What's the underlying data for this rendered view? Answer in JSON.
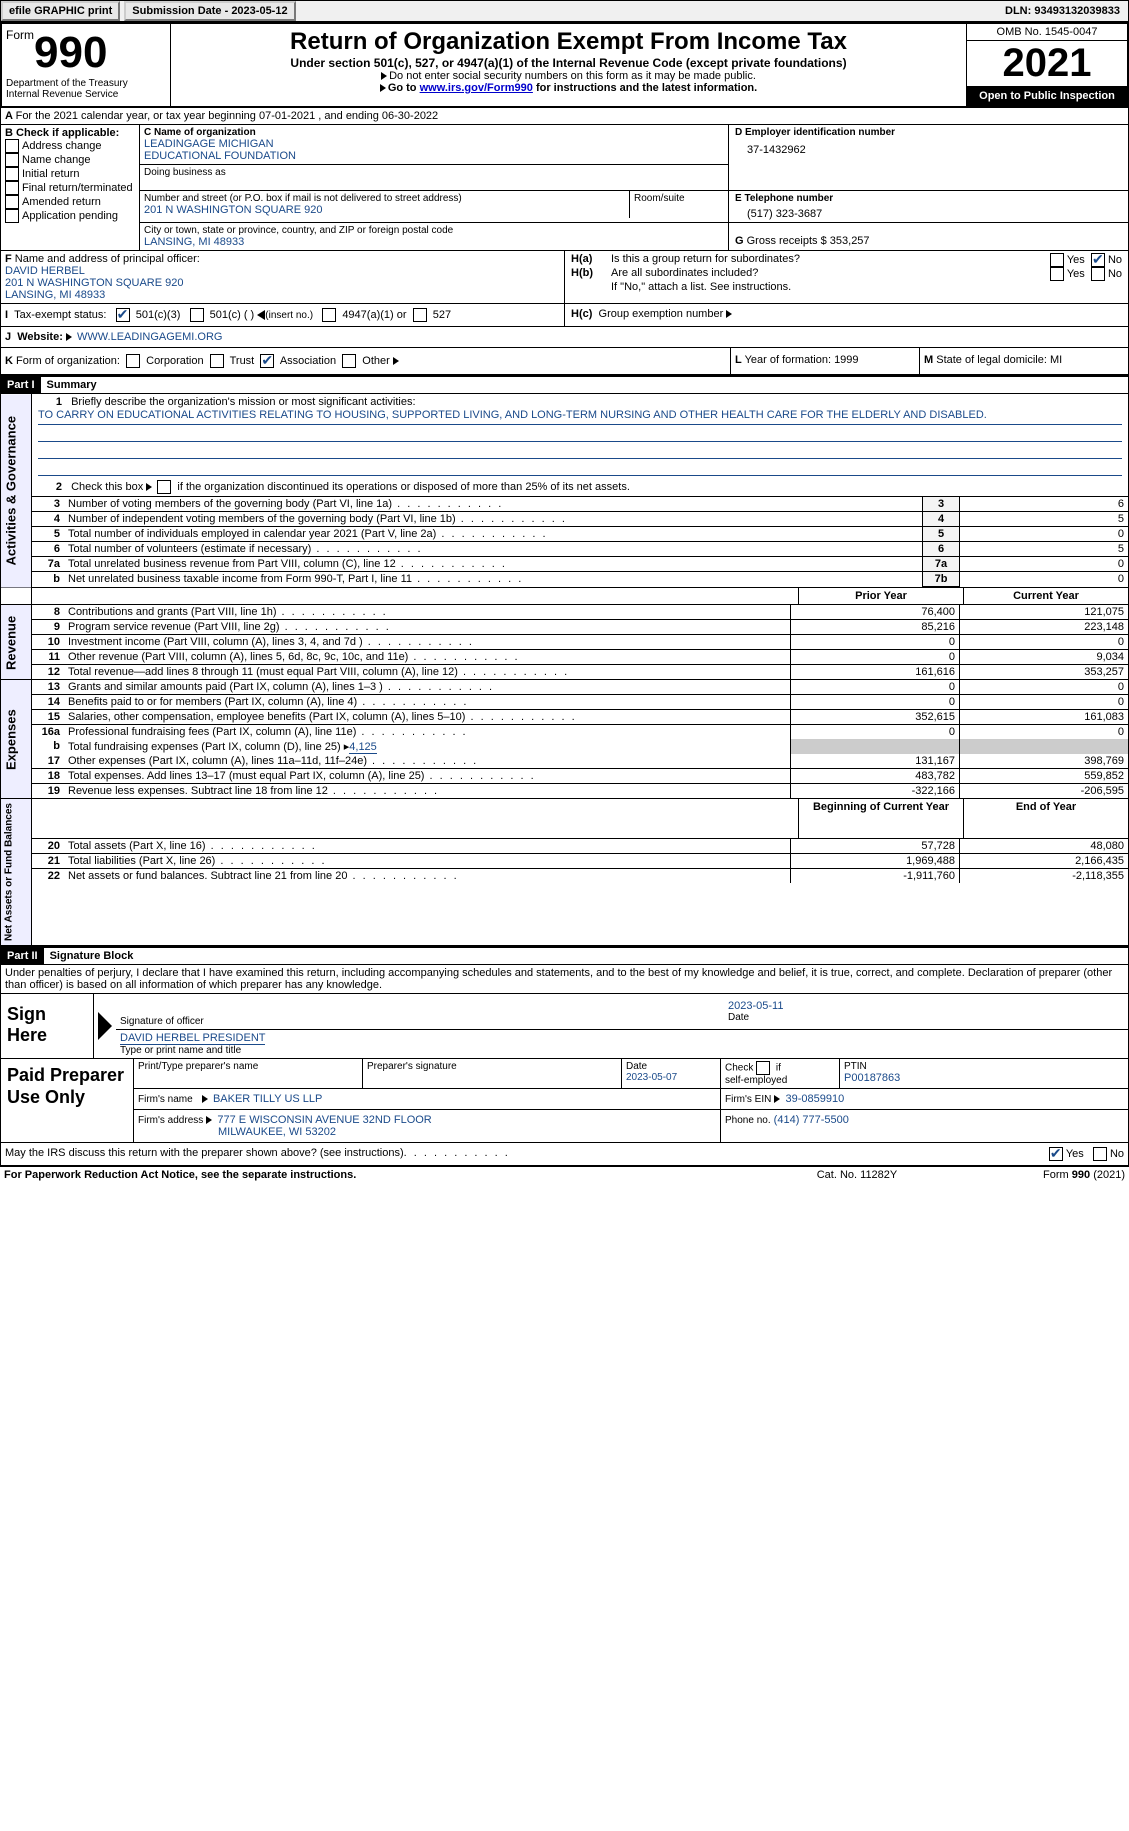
{
  "topbar": {
    "efile": "efile GRAPHIC print",
    "sub_label": "Submission Date - 2023-05-12",
    "dln": "DLN: 93493132039833"
  },
  "header": {
    "form_word": "Form",
    "form_num": "990",
    "dept": "Department of the Treasury",
    "irs": "Internal Revenue Service",
    "title": "Return of Organization Exempt From Income Tax",
    "subtitle": "Under section 501(c), 527, or 4947(a)(1) of the Internal Revenue Code (except private foundations)",
    "instr1": "Do not enter social security numbers on this form as it may be made public.",
    "instr2a": "Go to ",
    "instr2_link": "www.irs.gov/Form990",
    "instr2b": " for instructions and the latest information.",
    "omb": "OMB No. 1545-0047",
    "year": "2021",
    "open": "Open to Public Inspection"
  },
  "A": {
    "line": "For the 2021 calendar year, or tax year beginning 07-01-2021   , and ending 06-30-2022"
  },
  "B": {
    "label": "Check if applicable:",
    "opts": [
      "Address change",
      "Name change",
      "Initial return",
      "Final return/terminated",
      "Amended return",
      "Application pending"
    ]
  },
  "C": {
    "name_label": "Name of organization",
    "name1": "LEADINGAGE MICHIGAN",
    "name2": "EDUCATIONAL FOUNDATION",
    "dba_label": "Doing business as",
    "addr_label": "Number and street (or P.O. box if mail is not delivered to street address)",
    "room_label": "Room/suite",
    "addr": "201 N WASHINGTON SQUARE 920",
    "city_label": "City or town, state or province, country, and ZIP or foreign postal code",
    "city": "LANSING, MI  48933"
  },
  "D": {
    "label": "Employer identification number",
    "val": "37-1432962"
  },
  "E": {
    "label": "Telephone number",
    "val": "(517) 323-3687"
  },
  "G": {
    "label": "Gross receipts $",
    "val": "353,257"
  },
  "F": {
    "label": "Name and address of principal officer:",
    "name": "DAVID HERBEL",
    "addr1": "201 N WASHINGTON SQUARE 920",
    "addr2": "LANSING, MI  48933"
  },
  "H": {
    "a": "Is this a group return for subordinates?",
    "b": "Are all subordinates included?",
    "b_note": "If \"No,\" attach a list. See instructions.",
    "c": "Group exemption number",
    "yes": "Yes",
    "no": "No"
  },
  "I": {
    "label": "Tax-exempt status:",
    "c3": "501(c)(3)",
    "c": "501(c) (   )",
    "insert": "(insert no.)",
    "a1": "4947(a)(1) or",
    "s527": "527"
  },
  "J": {
    "label": "Website:",
    "val": "WWW.LEADINGAGEMI.ORG"
  },
  "K": {
    "label": "Form of organization:",
    "opts": [
      "Corporation",
      "Trust",
      "Association",
      "Other"
    ]
  },
  "L": {
    "label": "Year of formation:",
    "val": "1999"
  },
  "M": {
    "label": "State of legal domicile:",
    "val": "MI"
  },
  "part1": {
    "header": "Part I",
    "title": "Summary",
    "q1_label": "Briefly describe the organization's mission or most significant activities:",
    "q1_text": "TO CARRY ON EDUCATIONAL ACTIVITIES RELATING TO HOUSING, SUPPORTED LIVING, AND LONG-TERM NURSING AND OTHER HEALTH CARE FOR THE ELDERLY AND DISABLED.",
    "q2": "Check this box ▸ if the organization discontinued its operations or disposed of more than 25% of its net assets.",
    "lines_a": [
      {
        "n": "3",
        "d": "Number of voting members of the governing body (Part VI, line 1a)",
        "box": "3",
        "v": "6"
      },
      {
        "n": "4",
        "d": "Number of independent voting members of the governing body (Part VI, line 1b)",
        "box": "4",
        "v": "5"
      },
      {
        "n": "5",
        "d": "Total number of individuals employed in calendar year 2021 (Part V, line 2a)",
        "box": "5",
        "v": "0"
      },
      {
        "n": "6",
        "d": "Total number of volunteers (estimate if necessary)",
        "box": "6",
        "v": "5"
      },
      {
        "n": "7a",
        "d": "Total unrelated business revenue from Part VIII, column (C), line 12",
        "box": "7a",
        "v": "0"
      },
      {
        "n": "b",
        "d": "Net unrelated business taxable income from Form 990-T, Part I, line 11",
        "box": "7b",
        "v": "0"
      }
    ],
    "col_prior": "Prior Year",
    "col_current": "Current Year",
    "revenue": [
      {
        "n": "8",
        "d": "Contributions and grants (Part VIII, line 1h)",
        "p": "76,400",
        "c": "121,075"
      },
      {
        "n": "9",
        "d": "Program service revenue (Part VIII, line 2g)",
        "p": "85,216",
        "c": "223,148"
      },
      {
        "n": "10",
        "d": "Investment income (Part VIII, column (A), lines 3, 4, and 7d )",
        "p": "0",
        "c": "0"
      },
      {
        "n": "11",
        "d": "Other revenue (Part VIII, column (A), lines 5, 6d, 8c, 9c, 10c, and 11e)",
        "p": "0",
        "c": "9,034"
      },
      {
        "n": "12",
        "d": "Total revenue—add lines 8 through 11 (must equal Part VIII, column (A), line 12)",
        "p": "161,616",
        "c": "353,257"
      }
    ],
    "expenses": [
      {
        "n": "13",
        "d": "Grants and similar amounts paid (Part IX, column (A), lines 1–3 )",
        "p": "0",
        "c": "0"
      },
      {
        "n": "14",
        "d": "Benefits paid to or for members (Part IX, column (A), line 4)",
        "p": "0",
        "c": "0"
      },
      {
        "n": "15",
        "d": "Salaries, other compensation, employee benefits (Part IX, column (A), lines 5–10)",
        "p": "352,615",
        "c": "161,083"
      },
      {
        "n": "16a",
        "d": "Professional fundraising fees (Part IX, column (A), line 11e)",
        "p": "0",
        "c": "0"
      }
    ],
    "line_b": {
      "d": "Total fundraising expenses (Part IX, column (D), line 25) ▸",
      "v": "4,125"
    },
    "expenses2": [
      {
        "n": "17",
        "d": "Other expenses (Part IX, column (A), lines 11a–11d, 11f–24e)",
        "p": "131,167",
        "c": "398,769"
      },
      {
        "n": "18",
        "d": "Total expenses. Add lines 13–17 (must equal Part IX, column (A), line 25)",
        "p": "483,782",
        "c": "559,852"
      },
      {
        "n": "19",
        "d": "Revenue less expenses. Subtract line 18 from line 12",
        "p": "-322,166",
        "c": "-206,595"
      }
    ],
    "col_boy": "Beginning of Current Year",
    "col_eoy": "End of Year",
    "netassets": [
      {
        "n": "20",
        "d": "Total assets (Part X, line 16)",
        "p": "57,728",
        "c": "48,080"
      },
      {
        "n": "21",
        "d": "Total liabilities (Part X, line 26)",
        "p": "1,969,488",
        "c": "2,166,435"
      },
      {
        "n": "22",
        "d": "Net assets or fund balances. Subtract line 21 from line 20",
        "p": "-1,911,760",
        "c": "-2,118,355"
      }
    ],
    "side_ag": "Activities & Governance",
    "side_rev": "Revenue",
    "side_exp": "Expenses",
    "side_na": "Net Assets or Fund Balances"
  },
  "part2": {
    "header": "Part II",
    "title": "Signature Block",
    "decl": "Under penalties of perjury, I declare that I have examined this return, including accompanying schedules and statements, and to the best of my knowledge and belief, it is true, correct, and complete. Declaration of preparer (other than officer) is based on all information of which preparer has any knowledge.",
    "sign_here": "Sign Here",
    "sig_officer": "Signature of officer",
    "sig_date": "Date",
    "sig_date_val": "2023-05-11",
    "officer_name": "DAVID HERBEL  PRESIDENT",
    "type_name": "Type or print name and title",
    "paid": "Paid Preparer Use Only",
    "prep_name_label": "Print/Type preparer's name",
    "prep_sig_label": "Preparer's signature",
    "date_label": "Date",
    "date_val": "2023-05-07",
    "check_if": "Check",
    "self_emp": "self-employed",
    "ptin_label": "PTIN",
    "ptin": "P00187863",
    "firm_name_label": "Firm's name",
    "firm_name": "BAKER TILLY US LLP",
    "firm_ein_label": "Firm's EIN",
    "firm_ein": "39-0859910",
    "firm_addr_label": "Firm's address",
    "firm_addr1": "777 E WISCONSIN AVENUE 32ND FLOOR",
    "firm_addr2": "MILWAUKEE, WI  53202",
    "phone_label": "Phone no.",
    "phone": "(414) 777-5500",
    "discuss": "May the IRS discuss this return with the preparer shown above? (see instructions)",
    "yes": "Yes",
    "no": "No"
  },
  "footer": {
    "pra": "For Paperwork Reduction Act Notice, see the separate instructions.",
    "cat": "Cat. No. 11282Y",
    "form": "Form 990 (2021)"
  }
}
